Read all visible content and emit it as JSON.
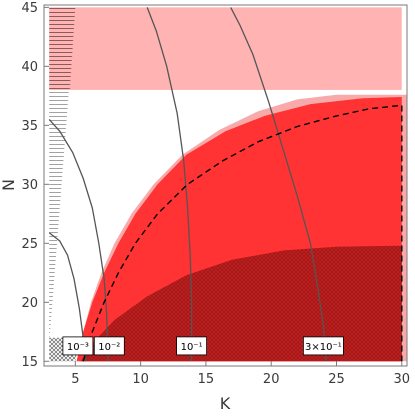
{
  "chart_data": {
    "type": "area",
    "xlabel": "K",
    "ylabel": "N",
    "xlim": [
      2.6,
      30.4
    ],
    "ylim": [
      14.6,
      45.2
    ],
    "x_ticks": [
      5,
      10,
      15,
      20,
      25,
      30
    ],
    "y_ticks": [
      15,
      20,
      25,
      30,
      35,
      40,
      45
    ],
    "grid": false,
    "colors": {
      "light_red": "#ffb3b3",
      "light_pink": "#f8aaaa",
      "red": "#ff3333",
      "dark_red": "#c11f1f",
      "contour": "#555555",
      "dashed": "#000000",
      "hatch": "#888888"
    },
    "regions": [
      {
        "style": "light-pink-band",
        "y_range": [
          38.0,
          45.0
        ],
        "x_range": [
          3.0,
          30.0
        ]
      },
      {
        "style": "light-pink-upper",
        "points": [
          [
            5.1,
            15.0
          ],
          [
            5.6,
            17.5
          ],
          [
            6.2,
            20.0
          ],
          [
            7.0,
            22.5
          ],
          [
            8.0,
            25.0
          ],
          [
            9.3,
            27.5
          ],
          [
            11.0,
            30.0
          ],
          [
            13.2,
            32.5
          ],
          [
            16.0,
            34.6
          ],
          [
            19.0,
            36.2
          ],
          [
            22.0,
            37.2
          ],
          [
            25.0,
            37.6
          ]
        ]
      },
      {
        "style": "red-main",
        "points": [
          [
            5.1,
            15.0
          ],
          [
            5.6,
            17.5
          ],
          [
            6.3,
            20.0
          ],
          [
            7.2,
            22.5
          ],
          [
            8.3,
            25.0
          ],
          [
            9.6,
            27.5
          ],
          [
            11.3,
            30.0
          ],
          [
            13.5,
            32.5
          ],
          [
            16.5,
            34.5
          ],
          [
            19.5,
            35.8
          ],
          [
            23.0,
            36.8
          ],
          [
            27.0,
            37.3
          ],
          [
            30.0,
            37.4
          ]
        ],
        "x_right": 30.0
      },
      {
        "style": "dark-red-hatched",
        "points": [
          [
            5.4,
            15.0
          ],
          [
            6.3,
            16.5
          ],
          [
            8.0,
            18.5
          ],
          [
            10.5,
            20.5
          ],
          [
            13.5,
            22.3
          ],
          [
            17.0,
            23.6
          ],
          [
            21.0,
            24.4
          ],
          [
            25.0,
            24.7
          ],
          [
            30.0,
            24.8
          ]
        ],
        "x_right": 30.0
      },
      {
        "style": "horizontal-hatch",
        "points": [
          [
            3.0,
            45.0
          ],
          [
            5.0,
            45.0
          ],
          [
            3.0,
            16.5
          ]
        ]
      },
      {
        "style": "cross-hatch",
        "points": [
          [
            3.0,
            15.0
          ],
          [
            5.0,
            15.0
          ],
          [
            5.3,
            17.0
          ],
          [
            3.0,
            17.0
          ]
        ]
      }
    ],
    "dashed_boundary": [
      [
        5.6,
        15.0
      ],
      [
        6.3,
        17.5
      ],
      [
        7.2,
        20.0
      ],
      [
        8.3,
        22.5
      ],
      [
        9.6,
        25.0
      ],
      [
        11.3,
        27.5
      ],
      [
        13.6,
        30.0
      ],
      [
        16.3,
        32.0
      ],
      [
        19.0,
        33.6
      ],
      [
        22.0,
        34.9
      ],
      [
        25.0,
        35.8
      ],
      [
        27.5,
        36.4
      ],
      [
        30.0,
        36.7
      ],
      [
        30.0,
        15.0
      ]
    ],
    "contours": [
      {
        "label": "10⁻³",
        "points": [
          [
            3.0,
            25.9
          ],
          [
            3.8,
            25.2
          ],
          [
            4.4,
            24.0
          ],
          [
            4.9,
            22.0
          ],
          [
            5.3,
            19.5
          ],
          [
            5.6,
            17.0
          ],
          [
            5.8,
            15.0
          ]
        ]
      },
      {
        "label": "10⁻²",
        "points": [
          [
            3.0,
            35.5
          ],
          [
            3.8,
            34.5
          ],
          [
            4.8,
            32.7
          ],
          [
            5.6,
            30.5
          ],
          [
            6.3,
            28.0
          ],
          [
            6.8,
            25.0
          ],
          [
            7.2,
            22.0
          ],
          [
            7.4,
            19.0
          ],
          [
            7.5,
            15.0
          ]
        ]
      },
      {
        "label": "10⁻¹",
        "points": [
          [
            10.5,
            45.0
          ],
          [
            11.2,
            43.0
          ],
          [
            12.0,
            40.0
          ],
          [
            12.8,
            36.0
          ],
          [
            13.3,
            32.0
          ],
          [
            13.6,
            28.0
          ],
          [
            13.8,
            24.0
          ],
          [
            13.9,
            20.0
          ],
          [
            13.9,
            17.5
          ],
          [
            13.9,
            15.0
          ]
        ]
      },
      {
        "label": "3×10⁻¹",
        "points": [
          [
            16.9,
            45.0
          ],
          [
            17.6,
            43.5
          ],
          [
            18.6,
            41.0
          ],
          [
            19.8,
            37.0
          ],
          [
            20.9,
            33.0
          ],
          [
            22.0,
            29.0
          ],
          [
            23.0,
            25.0
          ],
          [
            23.6,
            21.0
          ],
          [
            24.0,
            18.0
          ],
          [
            24.2,
            15.0
          ]
        ]
      }
    ],
    "contour_labels": [
      {
        "text": "10⁻³",
        "x": 5.2,
        "y": 16.3
      },
      {
        "text": "10⁻²",
        "x": 7.6,
        "y": 16.3
      },
      {
        "text": "10⁻¹",
        "x": 13.9,
        "y": 16.3
      },
      {
        "text": "3×10⁻¹",
        "x": 24.0,
        "y": 16.3
      }
    ]
  }
}
